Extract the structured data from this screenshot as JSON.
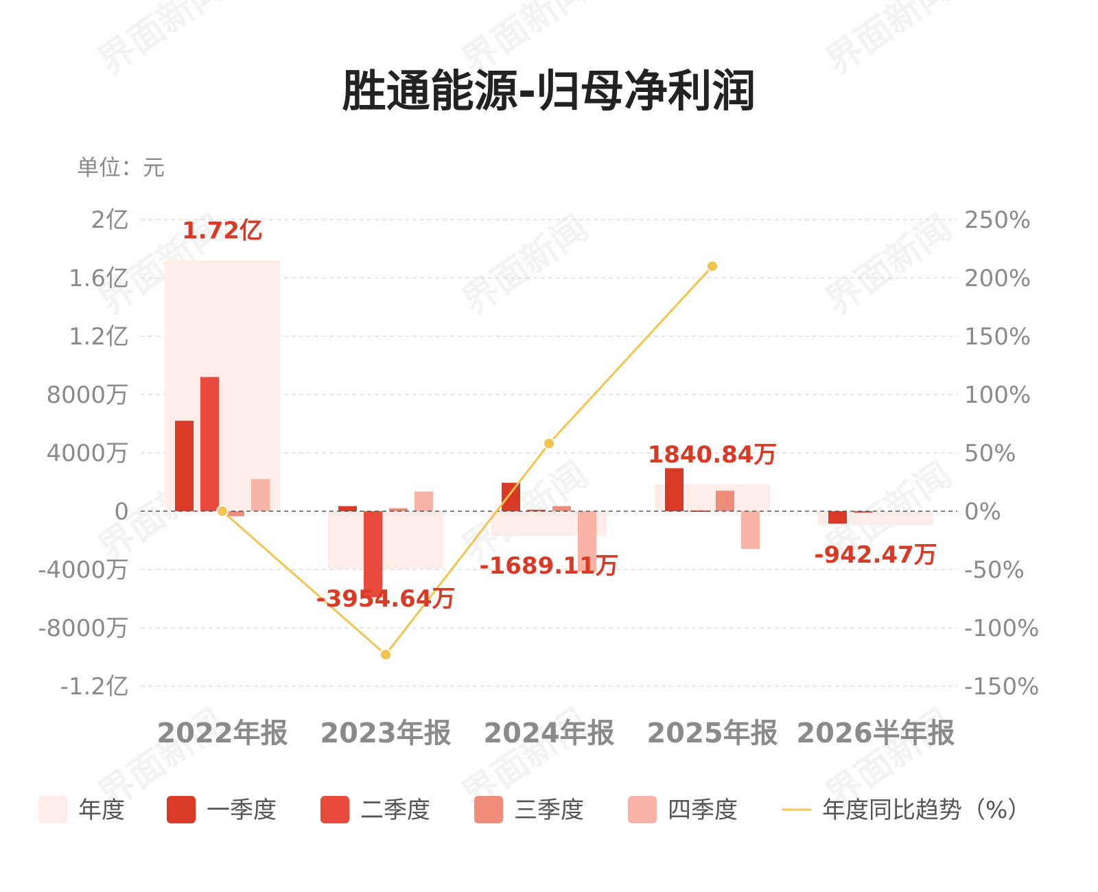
{
  "chart_data": {
    "type": "bar",
    "title": "胜通能源-归母净利润",
    "unit_label": "单位：元",
    "categories": [
      "2022年报",
      "2023年报",
      "2024年报",
      "2025年报",
      "2026半年报"
    ],
    "annual": {
      "name": "年度",
      "values": [
        172000000,
        -39546400,
        -16891100,
        18408400,
        -9424700
      ],
      "labels": [
        "1.72亿",
        "-3954.64万",
        "-1689.11万",
        "1840.84万",
        "-942.47万"
      ]
    },
    "series": [
      {
        "name": "一季度",
        "color": "#d93a26",
        "values": [
          62000000,
          3500000,
          19500000,
          29500000,
          -8500000
        ]
      },
      {
        "name": "二季度",
        "color": "#e84b3c",
        "values": [
          92000000,
          -59000000,
          1000000,
          500000,
          -1000000
        ]
      },
      {
        "name": "三季度",
        "color": "#f08c7a",
        "values": [
          -3500000,
          2000000,
          3500000,
          14000000,
          null
        ]
      },
      {
        "name": "四季度",
        "color": "#f7b3a6",
        "values": [
          22000000,
          13500000,
          -41500000,
          -26000000,
          null
        ]
      }
    ],
    "trend": {
      "name": "年度同比趋势（%）",
      "color": "#f2c44f",
      "values": [
        0,
        -123,
        58,
        210,
        null
      ]
    },
    "annual_color": "#fdece8",
    "y_left": {
      "min": -120000000,
      "max": 200000000,
      "ticks": [
        200000000,
        160000000,
        120000000,
        80000000,
        40000000,
        0,
        -40000000,
        -80000000,
        -120000000
      ],
      "tick_labels": [
        "2亿",
        "1.6亿",
        "1.2亿",
        "8000万",
        "4000万",
        "0",
        "-4000万",
        "-8000万",
        "-1.2亿"
      ]
    },
    "y_right": {
      "min": -150,
      "max": 250,
      "ticks": [
        250,
        200,
        150,
        100,
        50,
        0,
        -50,
        -100,
        -150
      ],
      "tick_labels": [
        "250%",
        "200%",
        "150%",
        "100%",
        "50%",
        "0%",
        "-50%",
        "-100%",
        "-150%"
      ]
    },
    "grid": true,
    "legend_position": "bottom",
    "legend": [
      "年度",
      "一季度",
      "二季度",
      "三季度",
      "四季度",
      "年度同比趋势（%）"
    ]
  },
  "watermark": "界面新闻"
}
